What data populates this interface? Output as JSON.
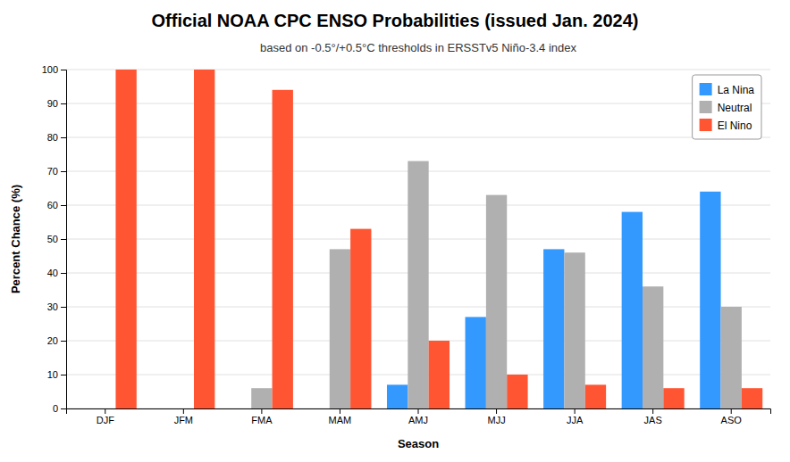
{
  "chart_data": {
    "type": "bar",
    "title": "Official NOAA CPC ENSO Probabilities (issued Jan. 2024)",
    "subtitle": "based on -0.5°/+0.5°C thresholds in ERSSTv5 Niño-3.4 index",
    "xlabel": "Season",
    "ylabel": "Percent Chance (%)",
    "categories": [
      "DJF",
      "JFM",
      "FMA",
      "MAM",
      "AMJ",
      "MJJ",
      "JJA",
      "JAS",
      "ASO"
    ],
    "series": [
      {
        "name": "La Nina",
        "color": "#3399ff",
        "values": [
          0,
          0,
          0,
          0,
          7,
          27,
          47,
          58,
          64
        ]
      },
      {
        "name": "Neutral",
        "color": "#b0b0b0",
        "values": [
          0,
          0,
          6,
          47,
          73,
          63,
          46,
          36,
          30
        ]
      },
      {
        "name": "El Nino",
        "color": "#ff5533",
        "values": [
          100,
          100,
          94,
          53,
          20,
          10,
          7,
          6,
          6
        ]
      }
    ],
    "ylim": [
      0,
      100
    ],
    "yticks": [
      0,
      10,
      20,
      30,
      40,
      50,
      60,
      70,
      80,
      90,
      100
    ],
    "grid": true,
    "legend": "upper right"
  }
}
